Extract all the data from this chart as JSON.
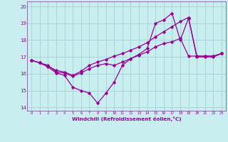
{
  "xlabel": "Windchill (Refroidissement éolien,°C)",
  "background_color": "#c8eef0",
  "grid_color": "#aad4d8",
  "line_color": "#990099",
  "spine_color": "#8855aa",
  "ylim": [
    13.8,
    20.3
  ],
  "xlim": [
    -0.5,
    23.5
  ],
  "yticks": [
    14,
    15,
    16,
    17,
    18,
    19,
    20
  ],
  "xticks": [
    0,
    1,
    2,
    3,
    4,
    5,
    6,
    7,
    8,
    9,
    10,
    11,
    12,
    13,
    14,
    15,
    16,
    17,
    18,
    19,
    20,
    21,
    22,
    23
  ],
  "series": [
    {
      "x": [
        0,
        1,
        2,
        3,
        4,
        5,
        6,
        7,
        8,
        9,
        10,
        11,
        12,
        13,
        14,
        15,
        16,
        17,
        18,
        19,
        20,
        21,
        22,
        23
      ],
      "y": [
        16.8,
        16.65,
        16.4,
        16.05,
        15.9,
        15.2,
        15.0,
        14.85,
        14.25,
        14.85,
        15.5,
        16.5,
        16.9,
        17.15,
        17.5,
        19.0,
        19.2,
        19.6,
        18.0,
        19.3,
        17.0,
        17.0,
        17.0,
        17.2
      ]
    },
    {
      "x": [
        0,
        1,
        2,
        3,
        4,
        5,
        6,
        7,
        8,
        9,
        10,
        11,
        12,
        13,
        14,
        15,
        16,
        17,
        18,
        19,
        20,
        21,
        22,
        23
      ],
      "y": [
        16.8,
        16.65,
        16.5,
        16.1,
        16.05,
        15.85,
        16.05,
        16.3,
        16.5,
        16.6,
        16.5,
        16.7,
        16.9,
        17.1,
        17.3,
        17.6,
        17.8,
        17.9,
        18.1,
        17.05,
        17.05,
        17.05,
        17.05,
        17.2
      ]
    },
    {
      "x": [
        0,
        1,
        2,
        3,
        4,
        5,
        6,
        7,
        8,
        9,
        10,
        11,
        12,
        13,
        14,
        15,
        16,
        17,
        18,
        19,
        20,
        21,
        22,
        23
      ],
      "y": [
        16.8,
        16.65,
        16.45,
        16.2,
        16.1,
        15.9,
        16.15,
        16.5,
        16.7,
        16.85,
        17.05,
        17.2,
        17.4,
        17.6,
        17.85,
        18.2,
        18.5,
        18.8,
        19.1,
        19.35,
        17.05,
        17.05,
        17.05,
        17.2
      ]
    }
  ]
}
